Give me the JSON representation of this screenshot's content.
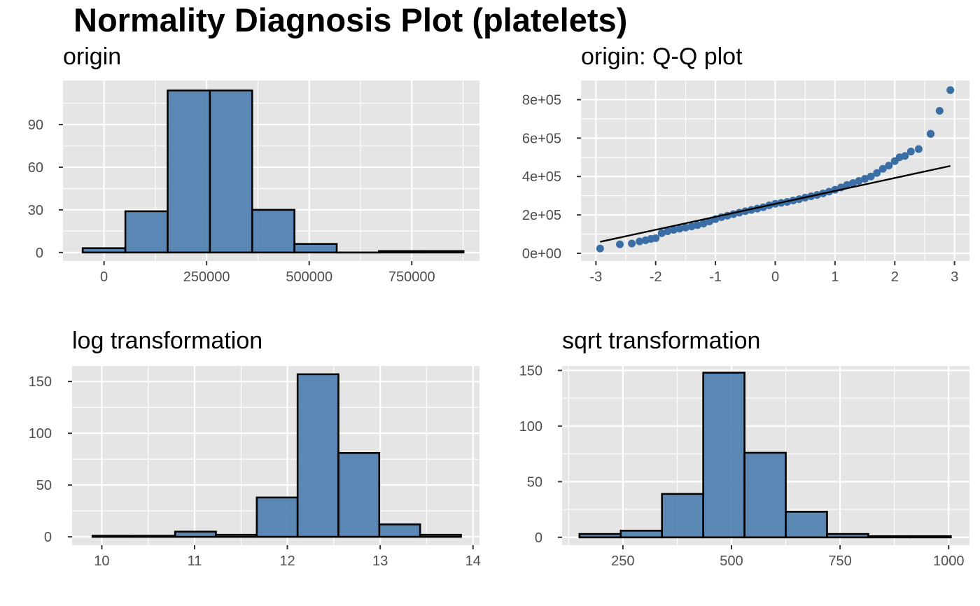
{
  "title": "Normality Diagnosis Plot (platelets)",
  "colors": {
    "panel_bg": "#e5e5e5",
    "grid": "#ffffff",
    "fill": "#4f7fb0",
    "outline": "#000000",
    "point": "#3b6ea5",
    "text": "#4d4d4d"
  },
  "chart_data": [
    {
      "type": "bar",
      "subtype": "histogram",
      "title": "origin",
      "xlabel": "",
      "ylabel": "",
      "xlim": [
        -100000,
        915000
      ],
      "ylim": [
        -6,
        121
      ],
      "xticks": [
        {
          "v": 0,
          "label": "0"
        },
        {
          "v": 250000,
          "label": "250000"
        },
        {
          "v": 500000,
          "label": "500000"
        },
        {
          "v": 750000,
          "label": "750000"
        }
      ],
      "yticks": [
        {
          "v": 0,
          "label": "0"
        },
        {
          "v": 30,
          "label": "30"
        },
        {
          "v": 60,
          "label": "60"
        },
        {
          "v": 90,
          "label": "90"
        }
      ],
      "bins": [
        {
          "x0": -52000,
          "x1": 52000,
          "count": 3
        },
        {
          "x0": 52000,
          "x1": 155000,
          "count": 29
        },
        {
          "x0": 155000,
          "x1": 258000,
          "count": 114
        },
        {
          "x0": 258000,
          "x1": 361000,
          "count": 114
        },
        {
          "x0": 361000,
          "x1": 464000,
          "count": 30
        },
        {
          "x0": 464000,
          "x1": 567000,
          "count": 6
        },
        {
          "x0": 567000,
          "x1": 670000,
          "count": 0
        },
        {
          "x0": 670000,
          "x1": 773000,
          "count": 1
        },
        {
          "x0": 773000,
          "x1": 876000,
          "count": 1
        }
      ],
      "grid": true
    },
    {
      "type": "scatter",
      "subtype": "qq",
      "title": "origin: Q-Q plot",
      "xlabel": "",
      "ylabel": "",
      "xlim": [
        -3.25,
        3.25
      ],
      "ylim": [
        -40000,
        900000
      ],
      "xticks": [
        {
          "v": -3,
          "label": "-3"
        },
        {
          "v": -2,
          "label": "-2"
        },
        {
          "v": -1,
          "label": "-1"
        },
        {
          "v": 0,
          "label": "0"
        },
        {
          "v": 1,
          "label": "1"
        },
        {
          "v": 2,
          "label": "2"
        },
        {
          "v": 3,
          "label": "3"
        }
      ],
      "yticks": [
        {
          "v": 0,
          "label": "0e+00"
        },
        {
          "v": 200000,
          "label": "2e+05"
        },
        {
          "v": 400000,
          "label": "4e+05"
        },
        {
          "v": 600000,
          "label": "6e+05"
        },
        {
          "v": 800000,
          "label": "8e+05"
        }
      ],
      "reference_line": [
        [
          -2.93,
          60000
        ],
        [
          2.93,
          455000
        ]
      ],
      "points": [
        [
          -2.93,
          25100
        ],
        [
          -2.6,
          47000
        ],
        [
          -2.4,
          51000
        ],
        [
          -2.27,
          62000
        ],
        [
          -2.17,
          68000
        ],
        [
          -2.08,
          75000
        ],
        [
          -2.0,
          79000
        ],
        [
          -1.9,
          105000
        ],
        [
          -1.8,
          115000
        ],
        [
          -1.7,
          122000
        ],
        [
          -1.6,
          128000
        ],
        [
          -1.5,
          134000
        ],
        [
          -1.4,
          140000
        ],
        [
          -1.3,
          147000
        ],
        [
          -1.2,
          155000
        ],
        [
          -1.1,
          166000
        ],
        [
          -1.0,
          178000
        ],
        [
          -0.9,
          188000
        ],
        [
          -0.8,
          196000
        ],
        [
          -0.7,
          204000
        ],
        [
          -0.6,
          212000
        ],
        [
          -0.5,
          219000
        ],
        [
          -0.4,
          226000
        ],
        [
          -0.3,
          233000
        ],
        [
          -0.2,
          240000
        ],
        [
          -0.1,
          250000
        ],
        [
          0.0,
          258000
        ],
        [
          0.1,
          263000
        ],
        [
          0.2,
          268000
        ],
        [
          0.3,
          275000
        ],
        [
          0.4,
          282000
        ],
        [
          0.5,
          290000
        ],
        [
          0.6,
          297000
        ],
        [
          0.7,
          304000
        ],
        [
          0.8,
          312000
        ],
        [
          0.9,
          321000
        ],
        [
          1.0,
          331000
        ],
        [
          1.1,
          343000
        ],
        [
          1.2,
          356000
        ],
        [
          1.3,
          366000
        ],
        [
          1.4,
          377000
        ],
        [
          1.5,
          388000
        ],
        [
          1.6,
          400000
        ],
        [
          1.7,
          418000
        ],
        [
          1.8,
          440000
        ],
        [
          1.9,
          457000
        ],
        [
          2.0,
          480000
        ],
        [
          2.08,
          500000
        ],
        [
          2.17,
          507000
        ],
        [
          2.27,
          530000
        ],
        [
          2.4,
          543000
        ],
        [
          2.6,
          622000
        ],
        [
          2.93,
          850000
        ]
      ],
      "extra_points": [
        [
          2.6,
          622000
        ],
        [
          2.75,
          742000
        ]
      ],
      "grid": true
    },
    {
      "type": "bar",
      "subtype": "histogram",
      "title": "log transformation",
      "xlabel": "",
      "ylabel": "",
      "xlim": [
        9.68,
        14.07
      ],
      "ylim": [
        -8,
        165
      ],
      "xticks": [
        {
          "v": 10,
          "label": "10"
        },
        {
          "v": 11,
          "label": "11"
        },
        {
          "v": 12,
          "label": "12"
        },
        {
          "v": 13,
          "label": "13"
        },
        {
          "v": 14,
          "label": "14"
        }
      ],
      "yticks": [
        {
          "v": 0,
          "label": "0"
        },
        {
          "v": 50,
          "label": "50"
        },
        {
          "v": 100,
          "label": "100"
        },
        {
          "v": 150,
          "label": "150"
        }
      ],
      "bins": [
        {
          "x0": 9.9,
          "x1": 10.35,
          "count": 1
        },
        {
          "x0": 10.35,
          "x1": 10.79,
          "count": 1
        },
        {
          "x0": 10.79,
          "x1": 11.23,
          "count": 5
        },
        {
          "x0": 11.23,
          "x1": 11.67,
          "count": 2
        },
        {
          "x0": 11.67,
          "x1": 12.11,
          "count": 38
        },
        {
          "x0": 12.11,
          "x1": 12.55,
          "count": 157
        },
        {
          "x0": 12.55,
          "x1": 12.99,
          "count": 81
        },
        {
          "x0": 12.99,
          "x1": 13.43,
          "count": 12
        },
        {
          "x0": 13.43,
          "x1": 13.87,
          "count": 2
        }
      ],
      "grid": true
    },
    {
      "type": "bar",
      "subtype": "histogram",
      "title": "sqrt transformation",
      "xlabel": "",
      "ylabel": "",
      "xlim": [
        110,
        1048
      ],
      "ylim": [
        -7,
        154
      ],
      "xticks": [
        {
          "v": 250,
          "label": "250"
        },
        {
          "v": 500,
          "label": "500"
        },
        {
          "v": 750,
          "label": "750"
        },
        {
          "v": 1000,
          "label": "1000"
        }
      ],
      "yticks": [
        {
          "v": 0,
          "label": "0"
        },
        {
          "v": 50,
          "label": "50"
        },
        {
          "v": 100,
          "label": "100"
        },
        {
          "v": 150,
          "label": "150"
        }
      ],
      "bins": [
        {
          "x0": 150,
          "x1": 245,
          "count": 3
        },
        {
          "x0": 245,
          "x1": 340,
          "count": 6
        },
        {
          "x0": 340,
          "x1": 435,
          "count": 39
        },
        {
          "x0": 435,
          "x1": 530,
          "count": 148
        },
        {
          "x0": 530,
          "x1": 625,
          "count": 76
        },
        {
          "x0": 625,
          "x1": 720,
          "count": 23
        },
        {
          "x0": 720,
          "x1": 815,
          "count": 3
        },
        {
          "x0": 815,
          "x1": 910,
          "count": 1
        },
        {
          "x0": 910,
          "x1": 1005,
          "count": 1
        }
      ],
      "grid": true
    }
  ]
}
